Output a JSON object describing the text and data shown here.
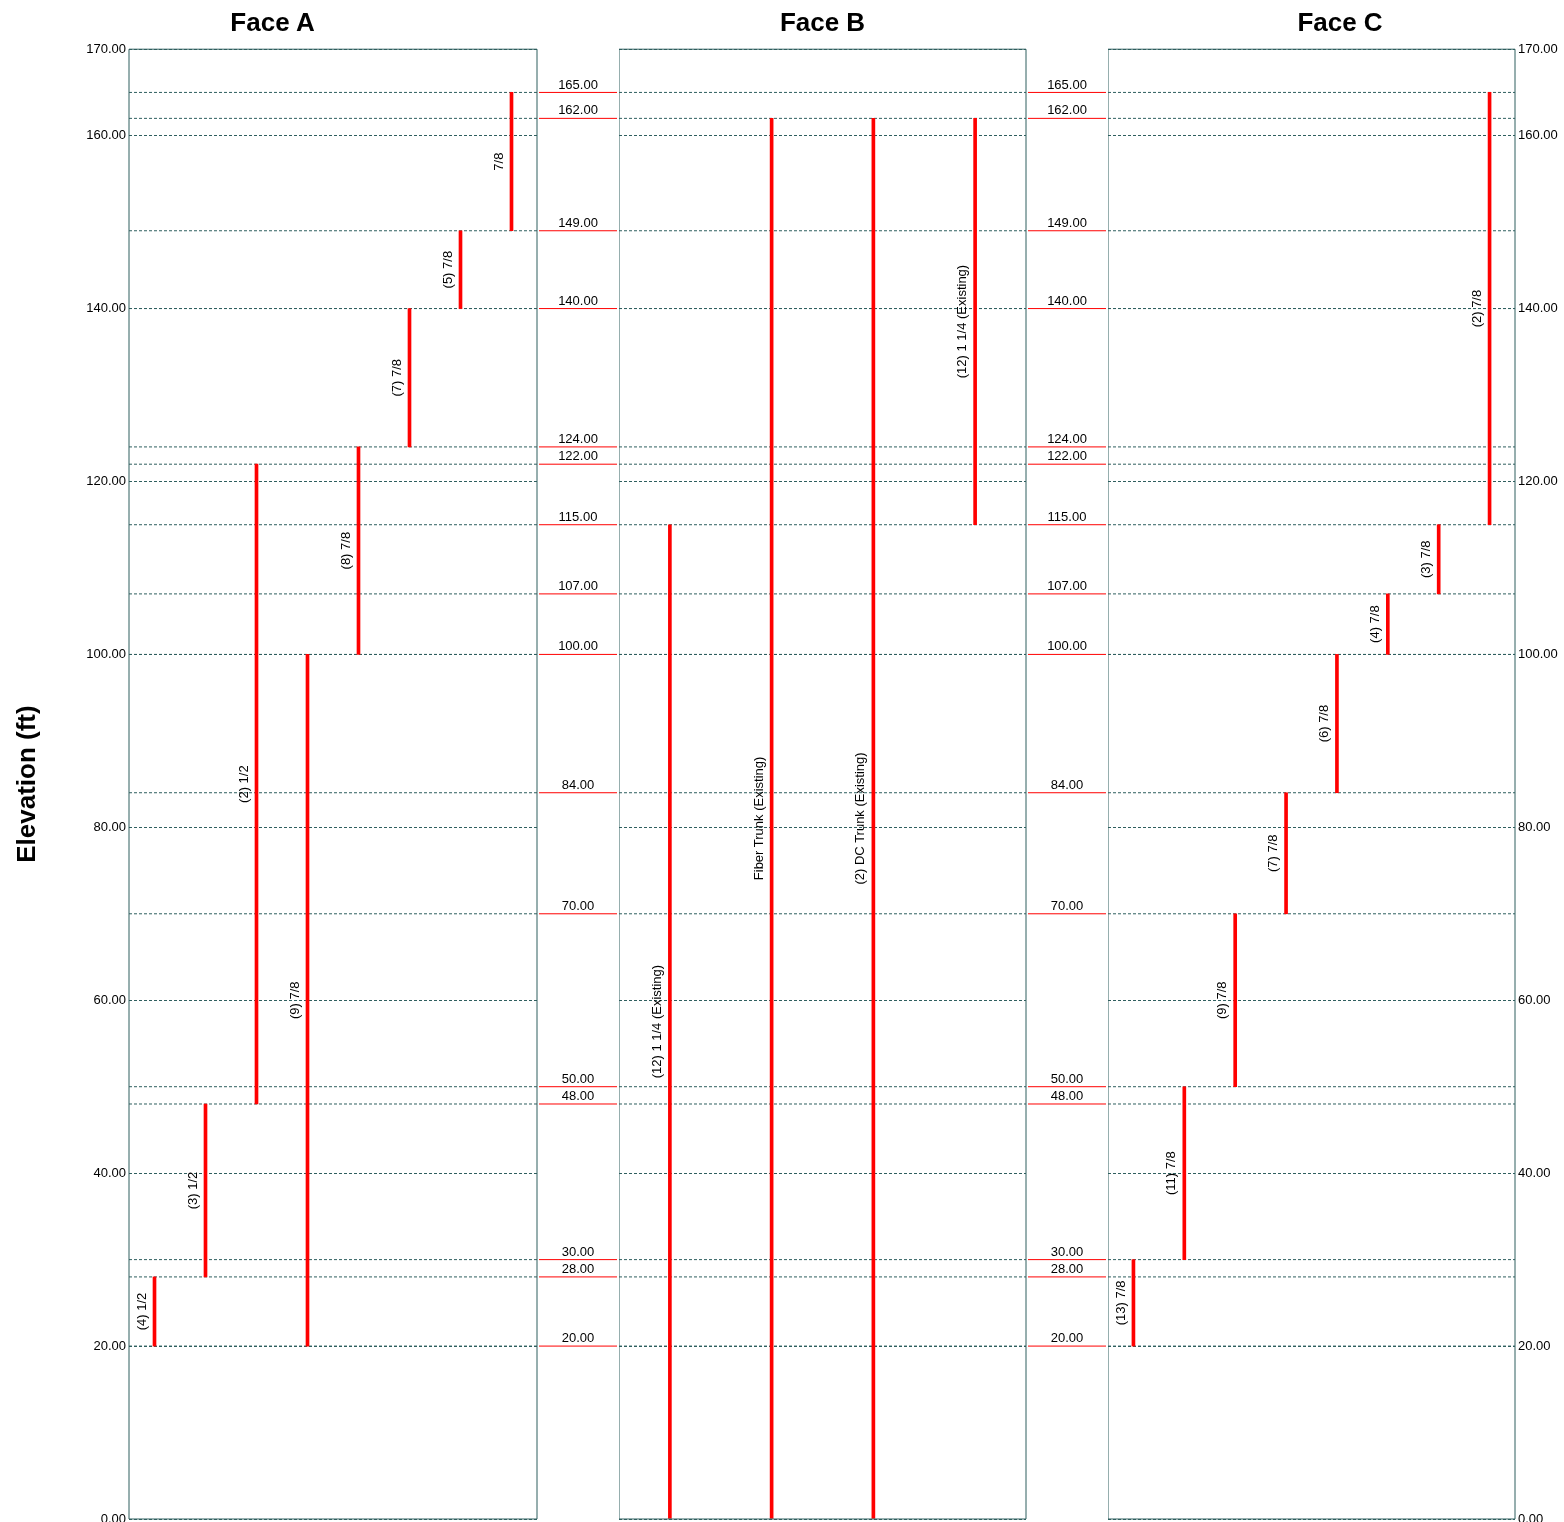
{
  "chart_data": [
    {
      "type": "bar",
      "title": "Face A",
      "ylabel": "Elevation (ft)",
      "categories": [
        "(4) 1/2",
        "(3) 1/2",
        "(2) 1/2",
        "(9) 7/8",
        "(8) 7/8",
        "(7) 7/8",
        "(5) 7/8",
        "7/8"
      ],
      "values": [
        8,
        20,
        74,
        80,
        24,
        16,
        9,
        16
      ],
      "base": [
        20,
        28,
        48,
        20,
        100,
        124,
        140,
        149
      ],
      "color": "#ff0000",
      "ylim": [
        0,
        170
      ],
      "yticks": [
        {
          "value": 0,
          "label": "0.00"
        },
        {
          "value": 20,
          "label": "20.00"
        },
        {
          "value": 40,
          "label": "40.00"
        },
        {
          "value": 60,
          "label": "60.00"
        },
        {
          "value": 80,
          "label": "80.00"
        },
        {
          "value": 100,
          "label": "100.00"
        },
        {
          "value": 120,
          "label": "120.00"
        },
        {
          "value": 140,
          "label": "140.00"
        },
        {
          "value": 160,
          "label": "160.00"
        },
        {
          "value": 170,
          "label": "170.00"
        }
      ],
      "grid": true,
      "ref_lines": [
        {
          "axis": "y",
          "value": 165,
          "label": "165.00"
        },
        {
          "axis": "y",
          "value": 162,
          "label": "162.00"
        },
        {
          "axis": "y",
          "value": 149,
          "label": "149.00"
        },
        {
          "axis": "y",
          "value": 140,
          "label": "140.00"
        },
        {
          "axis": "y",
          "value": 124,
          "label": "124.00"
        },
        {
          "axis": "y",
          "value": 122,
          "label": "122.00"
        },
        {
          "axis": "y",
          "value": 115,
          "label": "115.00"
        },
        {
          "axis": "y",
          "value": 107,
          "label": "107.00"
        },
        {
          "axis": "y",
          "value": 100,
          "label": "100.00"
        },
        {
          "axis": "y",
          "value": 84,
          "label": "84.00"
        },
        {
          "axis": "y",
          "value": 70,
          "label": "70.00"
        },
        {
          "axis": "y",
          "value": 50,
          "label": "50.00"
        },
        {
          "axis": "y",
          "value": 48,
          "label": "48.00"
        },
        {
          "axis": "y",
          "value": 30,
          "label": "30.00"
        },
        {
          "axis": "y",
          "value": 28,
          "label": "28.00"
        },
        {
          "axis": "y",
          "value": 20,
          "label": "20.00"
        }
      ]
    },
    {
      "type": "bar",
      "title": "Face B",
      "categories": [
        "(12) 1 1/4 (Existing)",
        "Fiber Trunk (Existing)",
        "(2) DC Trunk (Existing)",
        "(12) 1 1/4 (Existing)"
      ],
      "values": [
        115,
        162,
        162,
        47
      ],
      "base": [
        0,
        0,
        0,
        115
      ],
      "color": "#ff0000",
      "ylim": [
        0,
        170
      ],
      "yticks": [
        0,
        20,
        40,
        60,
        80,
        100,
        120,
        140,
        160,
        170
      ],
      "grid": true,
      "tick_labels": false,
      "ref_lines": [
        {
          "axis": "y",
          "value": 165,
          "label": "165.00"
        },
        {
          "axis": "y",
          "value": 162,
          "label": "162.00"
        },
        {
          "axis": "y",
          "value": 149,
          "label": "149.00"
        },
        {
          "axis": "y",
          "value": 140,
          "label": "140.00"
        },
        {
          "axis": "y",
          "value": 124,
          "label": "124.00"
        },
        {
          "axis": "y",
          "value": 122,
          "label": "122.00"
        },
        {
          "axis": "y",
          "value": 115,
          "label": "115.00"
        },
        {
          "axis": "y",
          "value": 107,
          "label": "107.00"
        },
        {
          "axis": "y",
          "value": 100,
          "label": "100.00"
        },
        {
          "axis": "y",
          "value": 84,
          "label": "84.00"
        },
        {
          "axis": "y",
          "value": 70,
          "label": "70.00"
        },
        {
          "axis": "y",
          "value": 50,
          "label": "50.00"
        },
        {
          "axis": "y",
          "value": 48,
          "label": "48.00"
        },
        {
          "axis": "y",
          "value": 30,
          "label": "30.00"
        },
        {
          "axis": "y",
          "value": 28,
          "label": "28.00"
        },
        {
          "axis": "y",
          "value": 20,
          "label": "20.00"
        }
      ]
    },
    {
      "type": "bar",
      "title": "Face C",
      "categories": [
        "(13) 7/8",
        "(11) 7/8",
        "(9) 7/8",
        "(7) 7/8",
        "(6) 7/8",
        "(4) 7/8",
        "(3) 7/8",
        "(2) 7/8"
      ],
      "values": [
        10,
        20,
        20,
        14,
        16,
        7,
        8,
        50
      ],
      "base": [
        20,
        30,
        50,
        70,
        84,
        100,
        107,
        115
      ],
      "color": "#ff0000",
      "ylim": [
        0,
        170
      ],
      "yticks": [
        {
          "value": 0,
          "label": "0.00"
        },
        {
          "value": 20,
          "label": "20.00"
        },
        {
          "value": 40,
          "label": "40.00"
        },
        {
          "value": 60,
          "label": "60.00"
        },
        {
          "value": 80,
          "label": "80.00"
        },
        {
          "value": 100,
          "label": "100.00"
        },
        {
          "value": 120,
          "label": "120.00"
        },
        {
          "value": 140,
          "label": "140.00"
        },
        {
          "value": 160,
          "label": "160.00"
        },
        {
          "value": 170,
          "label": "170.00"
        }
      ],
      "grid": true,
      "ref_lines": [
        {
          "axis": "y",
          "value": 165,
          "label": null
        },
        {
          "axis": "y",
          "value": 162,
          "label": null
        },
        {
          "axis": "y",
          "value": 149,
          "label": null
        },
        {
          "axis": "y",
          "value": 140,
          "label": null
        },
        {
          "axis": "y",
          "value": 124,
          "label": null
        },
        {
          "axis": "y",
          "value": 122,
          "label": null
        },
        {
          "axis": "y",
          "value": 115,
          "label": null
        },
        {
          "axis": "y",
          "value": 107,
          "label": null
        },
        {
          "axis": "y",
          "value": 100,
          "label": null
        },
        {
          "axis": "y",
          "value": 84,
          "label": null
        },
        {
          "axis": "y",
          "value": 70,
          "label": null
        },
        {
          "axis": "y",
          "value": 50,
          "label": null
        },
        {
          "axis": "y",
          "value": 48,
          "label": null
        },
        {
          "axis": "y",
          "value": 30,
          "label": null
        },
        {
          "axis": "y",
          "value": 28,
          "label": null
        },
        {
          "axis": "y",
          "value": 20,
          "label": null
        }
      ]
    }
  ]
}
